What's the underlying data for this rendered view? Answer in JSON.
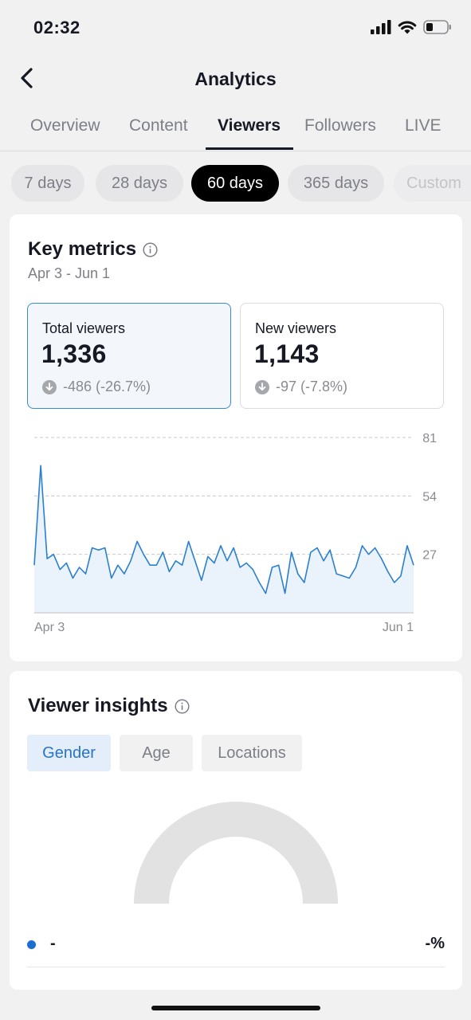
{
  "status_bar": {
    "time": "02:32"
  },
  "header": {
    "title": "Analytics"
  },
  "tabs": [
    {
      "label": "Overview",
      "active": false
    },
    {
      "label": "Content",
      "active": false
    },
    {
      "label": "Viewers",
      "active": true
    },
    {
      "label": "Followers",
      "active": false
    },
    {
      "label": "LIVE",
      "active": false
    }
  ],
  "date_ranges": [
    {
      "label": "7 days",
      "active": false
    },
    {
      "label": "28 days",
      "active": false
    },
    {
      "label": "60 days",
      "active": true
    },
    {
      "label": "365 days",
      "active": false
    },
    {
      "label": "Custom",
      "active": false
    }
  ],
  "key_metrics": {
    "title": "Key metrics",
    "date_range": "Apr 3 - Jun 1",
    "metrics": [
      {
        "label": "Total viewers",
        "value": "1,336",
        "change": "-486 (-26.7%)",
        "selected": true
      },
      {
        "label": "New viewers",
        "value": "1,143",
        "change": "-97 (-7.8%)",
        "selected": false
      }
    ]
  },
  "chart_data": {
    "type": "line",
    "title": "",
    "xlabel": "",
    "ylabel": "",
    "x_tick_labels": [
      "Apr 3",
      "Jun 1"
    ],
    "y_ticks": [
      27,
      54,
      81
    ],
    "ylim": [
      0,
      81
    ],
    "grid": true,
    "series": [
      {
        "values": [
          22,
          68,
          25,
          27,
          20,
          23,
          16,
          21,
          18,
          30,
          29,
          30,
          16,
          22,
          18,
          24,
          33,
          27,
          22,
          22,
          28,
          19,
          24,
          22,
          33,
          24,
          15,
          26,
          23,
          31,
          24,
          30,
          21,
          23,
          20,
          14,
          9,
          21,
          22,
          9,
          28,
          18,
          14,
          28,
          30,
          24,
          29,
          18,
          17,
          16,
          21,
          31,
          27,
          30,
          25,
          19,
          14,
          17,
          31,
          22
        ]
      }
    ],
    "colors": {
      "line": "#2b7fcf",
      "fill": "#eaf3fb"
    }
  },
  "viewer_insights": {
    "title": "Viewer insights",
    "tabs": [
      {
        "label": "Gender",
        "active": true
      },
      {
        "label": "Age",
        "active": false
      },
      {
        "label": "Locations",
        "active": false
      }
    ],
    "legend": [
      {
        "label": "-",
        "value": "-%",
        "color": "#1a6fd1"
      }
    ]
  },
  "colors": {
    "accent": "#2874c8",
    "selected_metric_border": "#3a8ad8",
    "gauge_empty": "#e2e2e2"
  }
}
